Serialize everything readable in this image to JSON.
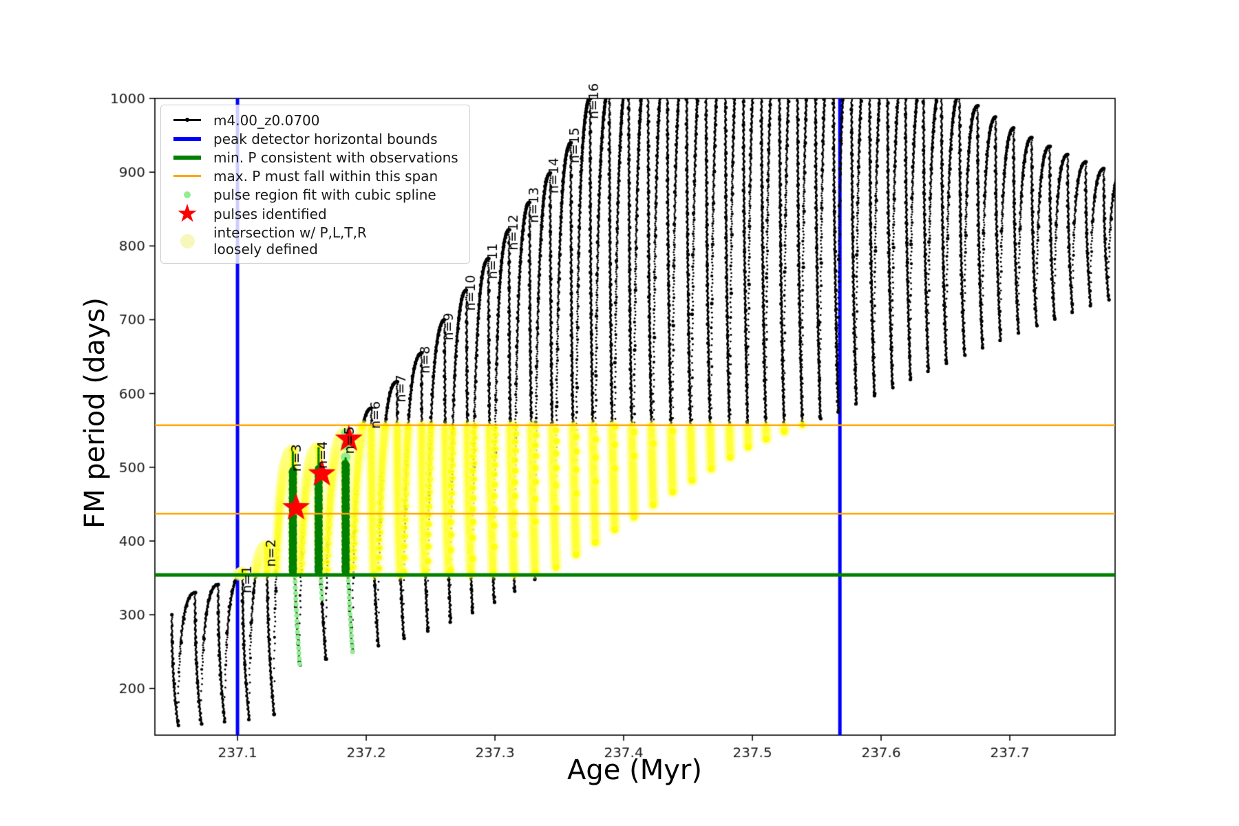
{
  "axes": {
    "xlabel": "Age (Myr)",
    "ylabel": "FM period (days)",
    "xlim": [
      237.0358,
      237.7818
    ],
    "ylim": [
      136.8,
      1000
    ],
    "xticks": [
      237.1,
      237.2,
      237.3,
      237.4,
      237.5,
      237.6,
      237.7
    ],
    "xtick_labels": [
      "237.1",
      "237.2",
      "237.3",
      "237.4",
      "237.5",
      "237.6",
      "237.7"
    ],
    "yticks": [
      200,
      300,
      400,
      500,
      600,
      700,
      800,
      900,
      1000
    ],
    "ytick_labels": [
      "200",
      "300",
      "400",
      "500",
      "600",
      "700",
      "800",
      "900",
      "1000"
    ],
    "frame_color": "#000000",
    "tick_label_color": "#1a1a1a"
  },
  "legend": {
    "items": [
      {
        "label": "m4.00_z0.0700",
        "marker": "line-dot",
        "color": "#000000"
      },
      {
        "label": "peak detector horizontal bounds",
        "marker": "thick-line",
        "color": "#0000ff"
      },
      {
        "label": "min. P consistent with observations",
        "marker": "thick-line",
        "color": "#008000"
      },
      {
        "label": "max. P must fall within this span",
        "marker": "line",
        "color": "#ffa500"
      },
      {
        "label": "pulse region fit with cubic spline",
        "marker": "dot",
        "color": "#90ee90"
      },
      {
        "label": "pulses identified",
        "marker": "star",
        "color": "#ff0000"
      },
      {
        "label": "intersection w/ P,L,T,R\nloosely defined",
        "marker": "big-dot",
        "color": "#f7f7bb"
      }
    ]
  },
  "chart_data": {
    "type": "line",
    "title": "",
    "xlabel": "Age (Myr)",
    "ylabel": "FM period (days)",
    "series": [
      {
        "name": "m4.00_z0.0700",
        "color": "#000000",
        "style": "dotted-line"
      }
    ],
    "pulses": {
      "comment": "thermal-pulse cycles: peak position (Myr), peak FM period (days, >1000 clipped by axis), trough after each peak (days)",
      "x_peak": [
        237.049,
        237.067,
        237.085,
        237.104,
        237.123,
        237.143,
        237.163,
        237.184,
        237.204,
        237.224,
        237.243,
        237.261,
        237.278,
        237.295,
        237.311,
        237.327,
        237.343,
        237.359,
        237.374,
        237.389,
        237.404,
        237.419,
        237.434,
        237.449,
        237.464,
        237.479,
        237.493,
        237.507,
        237.521,
        237.535,
        237.549,
        237.563,
        237.577,
        237.591,
        237.605,
        237.619,
        237.633,
        237.647,
        237.661,
        237.675,
        237.689,
        237.703,
        237.717,
        237.731,
        237.745,
        237.759,
        237.773
      ],
      "peak": [
        300,
        330,
        341,
        357,
        393,
        522,
        526,
        546,
        580,
        616,
        655,
        700,
        740,
        783,
        822,
        859,
        899,
        940,
        1000,
        1012,
        1032,
        1050,
        1066,
        1080,
        1092,
        1102,
        1110,
        1115,
        1117,
        1116,
        1112,
        1106,
        1097,
        1086,
        1072,
        1056,
        1038,
        1018,
        1005,
        990,
        975,
        960,
        947,
        935,
        924,
        914,
        905
      ],
      "trough_after": [
        150,
        152,
        155,
        158,
        165,
        232,
        240,
        250,
        258,
        268,
        278,
        290,
        303,
        317,
        332,
        348,
        364,
        381,
        398,
        415,
        432,
        449,
        466,
        482,
        498,
        513,
        527,
        538,
        548,
        557,
        566,
        575,
        586,
        597,
        608,
        619,
        630,
        641,
        652,
        662,
        672,
        682,
        692,
        701,
        710,
        719,
        727
      ],
      "trough_frac": 0.27
    },
    "pulse_labels": [
      {
        "text": "n=1",
        "index": 3
      },
      {
        "text": "n=2",
        "index": 4
      },
      {
        "text": "n=3",
        "index": 5
      },
      {
        "text": "n=4",
        "index": 6
      },
      {
        "text": "n=5",
        "index": 7
      },
      {
        "text": "n=6",
        "index": 8
      },
      {
        "text": "n=7",
        "index": 9
      },
      {
        "text": "n=8",
        "index": 10
      },
      {
        "text": "n=9",
        "index": 11
      },
      {
        "text": "n=10",
        "index": 12
      },
      {
        "text": "n=11",
        "index": 13
      },
      {
        "text": "n=12",
        "index": 14
      },
      {
        "text": "n=13",
        "index": 15
      },
      {
        "text": "n=14",
        "index": 16
      },
      {
        "text": "n=15",
        "index": 17
      },
      {
        "text": "n=16",
        "index": 18
      }
    ],
    "vlines": [
      {
        "x": 237.1,
        "color": "#0000ff",
        "lw": 5
      },
      {
        "x": 237.568,
        "color": "#0000ff",
        "lw": 5
      }
    ],
    "hlines": [
      {
        "y": 354,
        "color": "#008000",
        "lw": 5
      },
      {
        "y": 437,
        "color": "#ffa500",
        "lw": 2.5
      },
      {
        "y": 557,
        "color": "#ffa500",
        "lw": 2.5
      }
    ],
    "yellow_band": {
      "x": [
        237.09,
        237.568
      ],
      "y": [
        354,
        557
      ],
      "solid": "#ffff00",
      "pale": "#ffff99"
    },
    "green_bars": [
      {
        "x": 237.143,
        "from": 358,
        "to": 497,
        "stem_to": 522
      },
      {
        "x": 237.163,
        "from": 358,
        "to": 500,
        "stem_to": 526
      },
      {
        "x": 237.184,
        "from": 358,
        "to": 505,
        "stem_to": 512
      }
    ],
    "green_bar_color": "#008000",
    "lightgreen_color": "#90ee90",
    "lightgreen_runs": [
      {
        "pulse": 5,
        "lo": 232,
        "hi": 354,
        "r": 3.5,
        "halo": false
      },
      {
        "pulse": 6,
        "lo": 322,
        "hi": 354,
        "r": 3.5,
        "halo": false
      },
      {
        "pulse": 7,
        "lo": 248,
        "hi": 354,
        "r": 3.5,
        "halo": false
      },
      {
        "pulse": 7,
        "lo": 492,
        "hi": 546,
        "r": 7,
        "halo": true
      }
    ],
    "stars": [
      {
        "x": 237.1455,
        "y": 445
      },
      {
        "x": 237.1655,
        "y": 491
      },
      {
        "x": 237.1865,
        "y": 538
      }
    ],
    "star_color": "#ff0000"
  }
}
